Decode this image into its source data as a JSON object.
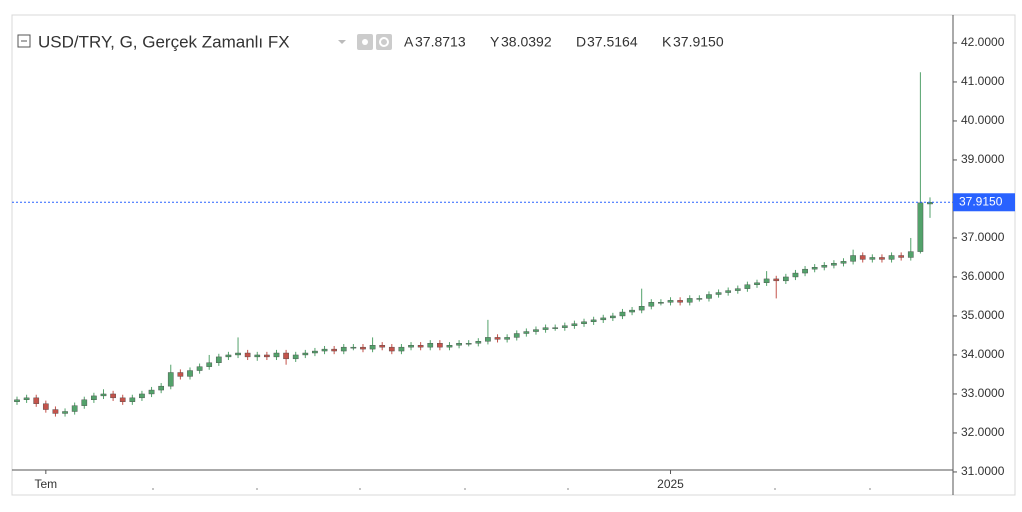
{
  "chart_data": {
    "type": "candlestick",
    "title": "USD/TRY, G, Gerçek Zamanlı FX",
    "ohlc_legend": [
      {
        "label": "A",
        "value": "37.8713"
      },
      {
        "label": "Y",
        "value": "38.0392"
      },
      {
        "label": "D",
        "value": "37.5164"
      },
      {
        "label": "K",
        "value": "37.9150"
      }
    ],
    "up_color": "#53a26b",
    "down_color": "#c4534b",
    "categories": [
      null,
      null,
      null,
      "Tem",
      null,
      null,
      null,
      null,
      null,
      null,
      null,
      null,
      null,
      null,
      null,
      null,
      null,
      null,
      null,
      null,
      null,
      null,
      null,
      null,
      null,
      null,
      null,
      null,
      null,
      null,
      null,
      null,
      null,
      null,
      null,
      null,
      null,
      null,
      null,
      null,
      null,
      null,
      null,
      null,
      null,
      null,
      null,
      null,
      null,
      null,
      null,
      null,
      null,
      null,
      null,
      null,
      null,
      null,
      null,
      null,
      null,
      null,
      null,
      null,
      null,
      null,
      null,
      null,
      "2025",
      null,
      null,
      null,
      null,
      null,
      null,
      null,
      null,
      null,
      null,
      null,
      null,
      null,
      null,
      null,
      null,
      null,
      null,
      null,
      null,
      null,
      null,
      null,
      null,
      null,
      null,
      null
    ],
    "open": [
      32.8,
      32.85,
      32.9,
      32.75,
      32.6,
      32.5,
      32.55,
      32.7,
      32.85,
      32.95,
      33.0,
      32.9,
      32.8,
      32.9,
      33.0,
      33.1,
      33.2,
      33.55,
      33.45,
      33.6,
      33.7,
      33.8,
      33.95,
      34.0,
      34.05,
      33.95,
      34.0,
      33.95,
      34.05,
      33.9,
      34.0,
      34.05,
      34.1,
      34.15,
      34.1,
      34.2,
      34.2,
      34.15,
      34.25,
      34.2,
      34.1,
      34.2,
      34.25,
      34.2,
      34.3,
      34.2,
      34.25,
      34.3,
      34.3,
      34.35,
      34.45,
      34.4,
      34.45,
      34.55,
      34.6,
      34.65,
      34.7,
      34.7,
      34.75,
      34.8,
      34.85,
      34.9,
      34.95,
      35.0,
      35.1,
      35.15,
      35.25,
      35.35,
      35.35,
      35.4,
      35.35,
      35.45,
      35.45,
      35.55,
      35.6,
      35.65,
      35.7,
      35.8,
      35.85,
      35.95,
      35.9,
      36.0,
      36.1,
      36.2,
      36.25,
      36.3,
      36.35,
      36.4,
      36.55,
      36.45,
      36.5,
      36.45,
      36.55,
      36.5,
      36.65,
      37.8713
    ],
    "high": [
      32.93,
      32.98,
      32.98,
      32.83,
      32.68,
      32.63,
      32.78,
      32.93,
      33.03,
      33.12,
      33.08,
      32.98,
      32.98,
      33.08,
      33.18,
      33.28,
      33.75,
      33.63,
      33.68,
      33.78,
      34.0,
      34.03,
      34.08,
      34.45,
      34.13,
      34.08,
      34.08,
      34.13,
      34.13,
      34.08,
      34.13,
      34.18,
      34.23,
      34.23,
      34.28,
      34.28,
      34.28,
      34.45,
      34.33,
      34.28,
      34.28,
      34.33,
      34.33,
      34.38,
      34.38,
      34.33,
      34.38,
      34.38,
      34.43,
      34.9,
      34.53,
      34.53,
      34.63,
      34.68,
      34.73,
      34.78,
      34.78,
      34.83,
      34.88,
      34.93,
      34.98,
      35.03,
      35.08,
      35.18,
      35.23,
      35.7,
      35.43,
      35.43,
      35.48,
      35.48,
      35.53,
      35.53,
      35.63,
      35.68,
      35.73,
      35.78,
      35.88,
      35.93,
      36.15,
      36.03,
      36.08,
      36.18,
      36.28,
      36.33,
      36.38,
      36.43,
      36.48,
      36.7,
      36.63,
      36.58,
      36.58,
      36.63,
      36.63,
      37.0,
      41.25,
      38.0392
    ],
    "low": [
      32.72,
      32.77,
      32.67,
      32.52,
      32.42,
      32.42,
      32.47,
      32.62,
      32.77,
      32.87,
      32.82,
      32.72,
      32.72,
      32.82,
      32.92,
      33.02,
      33.12,
      33.37,
      33.37,
      33.52,
      33.62,
      33.72,
      33.87,
      33.92,
      33.87,
      33.85,
      33.87,
      33.87,
      33.75,
      33.82,
      33.92,
      33.97,
      34.02,
      34.02,
      34.02,
      34.12,
      34.07,
      34.07,
      34.12,
      34.02,
      34.02,
      34.12,
      34.12,
      34.12,
      34.12,
      34.12,
      34.17,
      34.22,
      34.22,
      34.27,
      34.32,
      34.32,
      34.37,
      34.47,
      34.52,
      34.57,
      34.62,
      34.62,
      34.67,
      34.72,
      34.77,
      34.82,
      34.87,
      34.92,
      35.02,
      35.07,
      35.17,
      35.27,
      35.27,
      35.27,
      35.27,
      35.37,
      35.37,
      35.47,
      35.52,
      35.57,
      35.62,
      35.72,
      35.77,
      35.45,
      35.82,
      35.92,
      36.02,
      36.12,
      36.17,
      36.22,
      36.27,
      36.32,
      36.37,
      36.37,
      36.37,
      36.37,
      36.42,
      36.42,
      36.6,
      37.5164
    ],
    "close": [
      32.85,
      32.9,
      32.75,
      32.6,
      32.5,
      32.55,
      32.7,
      32.85,
      32.95,
      33.0,
      32.9,
      32.8,
      32.9,
      33.0,
      33.1,
      33.2,
      33.55,
      33.45,
      33.6,
      33.7,
      33.8,
      33.95,
      34.0,
      34.05,
      33.95,
      34.0,
      33.95,
      34.05,
      33.9,
      34.0,
      34.05,
      34.1,
      34.15,
      34.1,
      34.2,
      34.2,
      34.15,
      34.25,
      34.2,
      34.1,
      34.2,
      34.25,
      34.2,
      34.3,
      34.2,
      34.25,
      34.3,
      34.3,
      34.35,
      34.45,
      34.4,
      34.45,
      34.55,
      34.6,
      34.65,
      34.7,
      34.7,
      34.75,
      34.8,
      34.85,
      34.9,
      34.95,
      35.0,
      35.1,
      35.15,
      35.25,
      35.35,
      35.35,
      35.4,
      35.35,
      35.45,
      35.45,
      35.55,
      35.6,
      35.65,
      35.7,
      35.8,
      35.85,
      35.95,
      35.9,
      36.0,
      36.1,
      36.2,
      36.25,
      36.3,
      36.35,
      36.4,
      36.55,
      36.45,
      36.5,
      36.45,
      36.55,
      36.5,
      36.65,
      37.9,
      37.915
    ],
    "ylim": [
      31.05,
      42.64
    ],
    "yticks": [
      {
        "value": 31,
        "label": "31.0000"
      },
      {
        "value": 32,
        "label": "32.0000"
      },
      {
        "value": 33,
        "label": "33.0000"
      },
      {
        "value": 34,
        "label": "34.0000"
      },
      {
        "value": 35,
        "label": "35.0000"
      },
      {
        "value": 36,
        "label": "36.0000"
      },
      {
        "value": 37,
        "label": "37.0000"
      },
      {
        "value": 38,
        "label": "38.0000"
      },
      {
        "value": 39,
        "label": "39.0000"
      },
      {
        "value": 40,
        "label": "40.0000"
      },
      {
        "value": 41,
        "label": "41.0000"
      },
      {
        "value": 42,
        "label": "42.0000"
      }
    ],
    "last_price": {
      "value": 37.915,
      "label": "37.9150"
    },
    "last_price_color": "#2962ff"
  }
}
